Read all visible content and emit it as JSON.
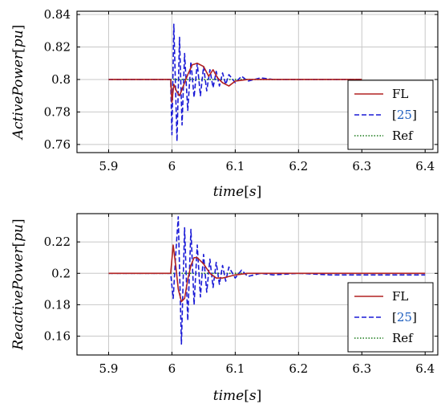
{
  "colors": {
    "fl": "#b22222",
    "cite": "#1a1ad6",
    "ref": "#1a7a1a",
    "grid": "#c8c8c8",
    "cite_text": "#1f5fbf"
  },
  "chart_data": [
    {
      "type": "line",
      "xlabel": "time[s]",
      "ylabel": "ActivePower[pu]",
      "xlim": [
        5.85,
        6.42
      ],
      "ylim": [
        0.755,
        0.842
      ],
      "grid": true,
      "legend_position": "bottom-right",
      "xticks": [
        5.9,
        6.0,
        6.1,
        6.2,
        6.3,
        6.4
      ],
      "xtick_labels": [
        "5.9",
        "6",
        "6.1",
        "6.2",
        "6.3",
        "6.4"
      ],
      "yticks": [
        0.76,
        0.78,
        0.8,
        0.82,
        0.84
      ],
      "ytick_labels": [
        "0.76",
        "0.78",
        "0.8",
        "0.82",
        "0.84"
      ],
      "series": [
        {
          "name": "FL",
          "style": "solid",
          "x": [
            5.9,
            5.95,
            5.998,
            6.0,
            6.003,
            6.007,
            6.012,
            6.018,
            6.025,
            6.032,
            6.04,
            6.05,
            6.058,
            6.065,
            6.072,
            6.08,
            6.09,
            6.1,
            6.12,
            6.15,
            6.2,
            6.25,
            6.3
          ],
          "y": [
            0.8,
            0.8,
            0.8,
            0.786,
            0.797,
            0.793,
            0.79,
            0.796,
            0.803,
            0.809,
            0.81,
            0.808,
            0.802,
            0.806,
            0.801,
            0.798,
            0.796,
            0.799,
            0.8,
            0.8,
            0.8,
            0.8,
            0.8
          ]
        },
        {
          "name": "[25]",
          "style": "dashed",
          "x": [
            5.9,
            5.95,
            5.998,
            6.0,
            6.003,
            6.008,
            6.012,
            6.016,
            6.02,
            6.025,
            6.03,
            6.035,
            6.04,
            6.045,
            6.05,
            6.055,
            6.06,
            6.065,
            6.07,
            6.075,
            6.08,
            6.085,
            6.09,
            6.1,
            6.11,
            6.12,
            6.14,
            6.16,
            6.2,
            6.25,
            6.3
          ],
          "y": [
            0.8,
            0.8,
            0.8,
            0.766,
            0.834,
            0.762,
            0.826,
            0.772,
            0.816,
            0.781,
            0.811,
            0.789,
            0.81,
            0.79,
            0.808,
            0.793,
            0.806,
            0.795,
            0.805,
            0.796,
            0.804,
            0.797,
            0.803,
            0.798,
            0.802,
            0.799,
            0.801,
            0.8,
            0.8,
            0.8,
            0.8
          ]
        },
        {
          "name": "Ref",
          "style": "dotted",
          "x": [
            5.9,
            6.3
          ],
          "y": [
            0.8,
            0.8
          ]
        }
      ]
    },
    {
      "type": "line",
      "xlabel": "time[s]",
      "ylabel": "ReactivePower[pu]",
      "xlim": [
        5.85,
        6.42
      ],
      "ylim": [
        0.148,
        0.238
      ],
      "grid": true,
      "legend_position": "bottom-right",
      "xticks": [
        5.9,
        6.0,
        6.1,
        6.2,
        6.3,
        6.4
      ],
      "xtick_labels": [
        "5.9",
        "6",
        "6.1",
        "6.2",
        "6.3",
        "6.4"
      ],
      "yticks": [
        0.16,
        0.18,
        0.2,
        0.22
      ],
      "ytick_labels": [
        "0.16",
        "0.18",
        "0.2",
        "0.22"
      ],
      "series": [
        {
          "name": "FL",
          "style": "solid",
          "x": [
            5.9,
            5.95,
            5.998,
            6.002,
            6.006,
            6.01,
            6.015,
            6.02,
            6.025,
            6.03,
            6.035,
            6.04,
            6.05,
            6.06,
            6.07,
            6.08,
            6.09,
            6.1,
            6.12,
            6.15,
            6.2,
            6.25,
            6.3,
            6.35,
            6.4
          ],
          "y": [
            0.2,
            0.2,
            0.2,
            0.218,
            0.205,
            0.19,
            0.182,
            0.184,
            0.196,
            0.205,
            0.21,
            0.21,
            0.206,
            0.2,
            0.197,
            0.197,
            0.198,
            0.199,
            0.2,
            0.2,
            0.2,
            0.2,
            0.2,
            0.2,
            0.2
          ]
        },
        {
          "name": "[25]",
          "style": "dashed",
          "x": [
            5.9,
            5.95,
            5.998,
            6.002,
            6.006,
            6.01,
            6.015,
            6.02,
            6.025,
            6.03,
            6.035,
            6.04,
            6.045,
            6.05,
            6.055,
            6.06,
            6.065,
            6.07,
            6.075,
            6.08,
            6.085,
            6.09,
            6.1,
            6.11,
            6.12,
            6.14,
            6.16,
            6.2,
            6.25,
            6.3,
            6.35,
            6.4
          ],
          "y": [
            0.2,
            0.2,
            0.2,
            0.184,
            0.212,
            0.236,
            0.155,
            0.229,
            0.17,
            0.228,
            0.18,
            0.218,
            0.185,
            0.212,
            0.188,
            0.209,
            0.191,
            0.207,
            0.193,
            0.205,
            0.195,
            0.204,
            0.197,
            0.202,
            0.198,
            0.2,
            0.199,
            0.2,
            0.199,
            0.199,
            0.199,
            0.199
          ]
        },
        {
          "name": "Ref",
          "style": "dotted",
          "x": [
            5.9,
            6.4
          ],
          "y": [
            0.2,
            0.2
          ]
        }
      ]
    }
  ]
}
